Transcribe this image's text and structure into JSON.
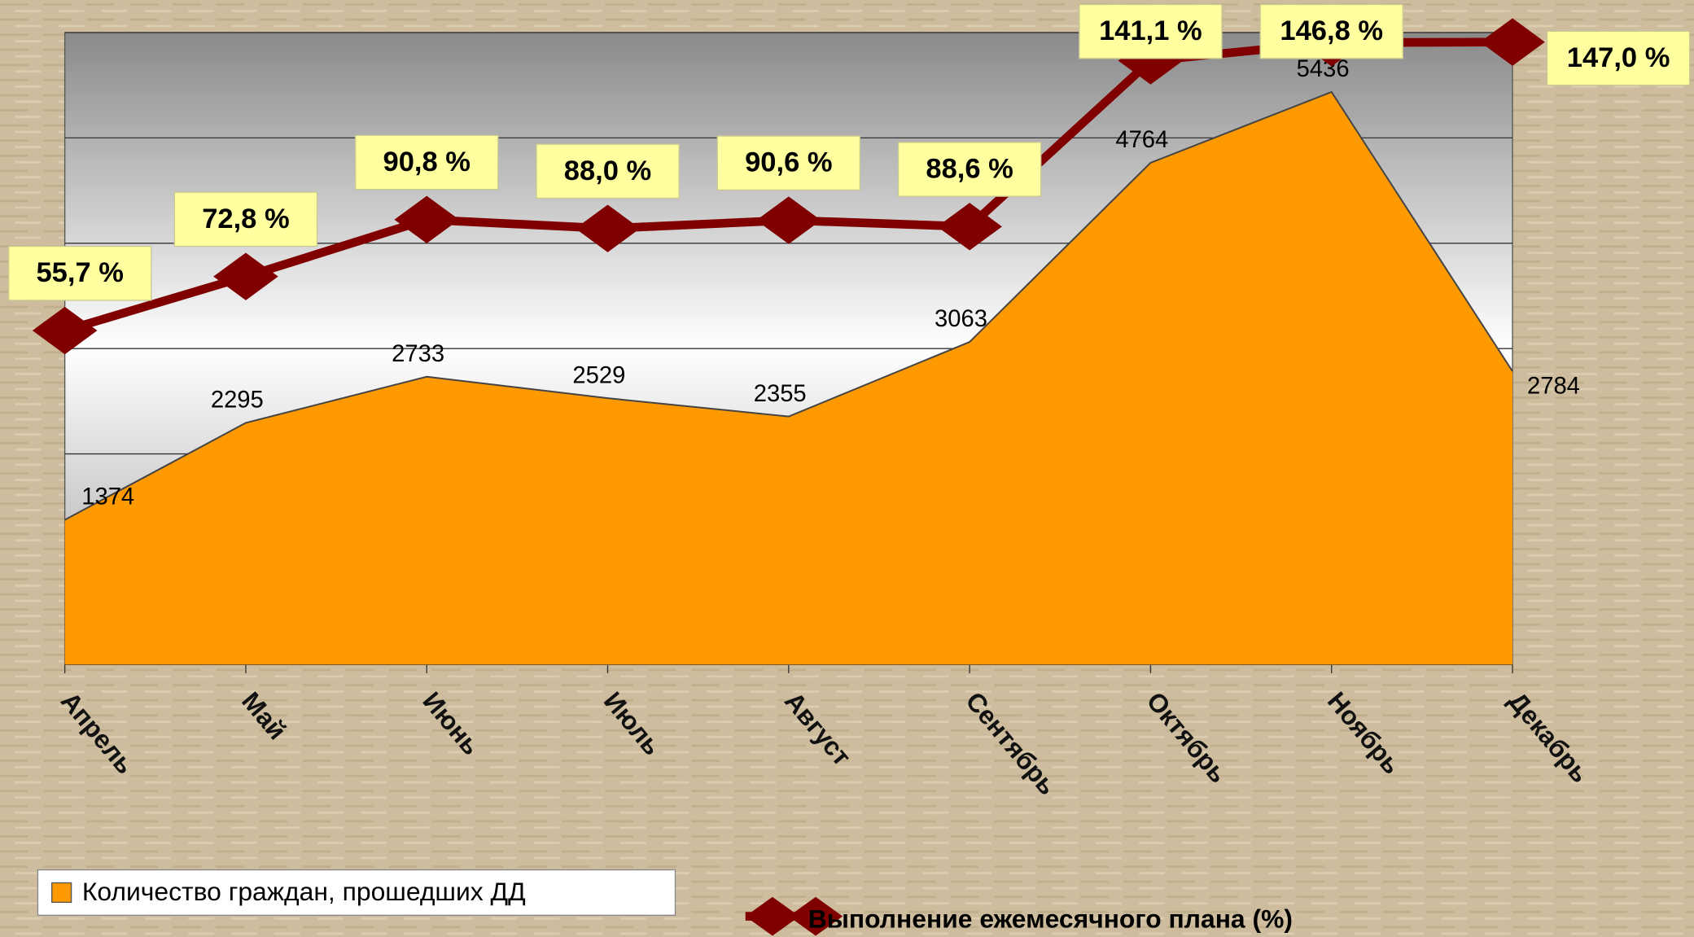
{
  "chart_data": {
    "type": "area",
    "categories": [
      "Апрель",
      "Май",
      "Июнь",
      "Июль",
      "Август",
      "Сентябрь",
      "Октябрь",
      "Ноябрь",
      "Декабрь"
    ],
    "series": [
      {
        "name": "Количество граждан, прошедших ДД",
        "color": "#ff9900",
        "type": "area",
        "values": [
          1374,
          2295,
          2733,
          2529,
          2355,
          3063,
          4764,
          5436,
          2784
        ]
      },
      {
        "name": "Выполнение ежемесячного плана (%)",
        "color": "#800000",
        "type": "line",
        "axis": "y2",
        "values": [
          55.7,
          72.8,
          90.8,
          88.0,
          90.6,
          88.6,
          141.1,
          146.8,
          147.0
        ],
        "value_labels": [
          "55,7 %",
          "72,8 %",
          "90,8 %",
          "88,0 %",
          "90,6 %",
          "88,6 %",
          "141,1 %",
          "146,8 %",
          "147,0 %"
        ]
      }
    ],
    "ylim": [
      0,
      6000
    ],
    "yticks": [
      0,
      1000,
      2000,
      3000,
      4000,
      5000,
      6000
    ],
    "y2lim": [
      -50,
      150
    ],
    "grid": true
  }
}
